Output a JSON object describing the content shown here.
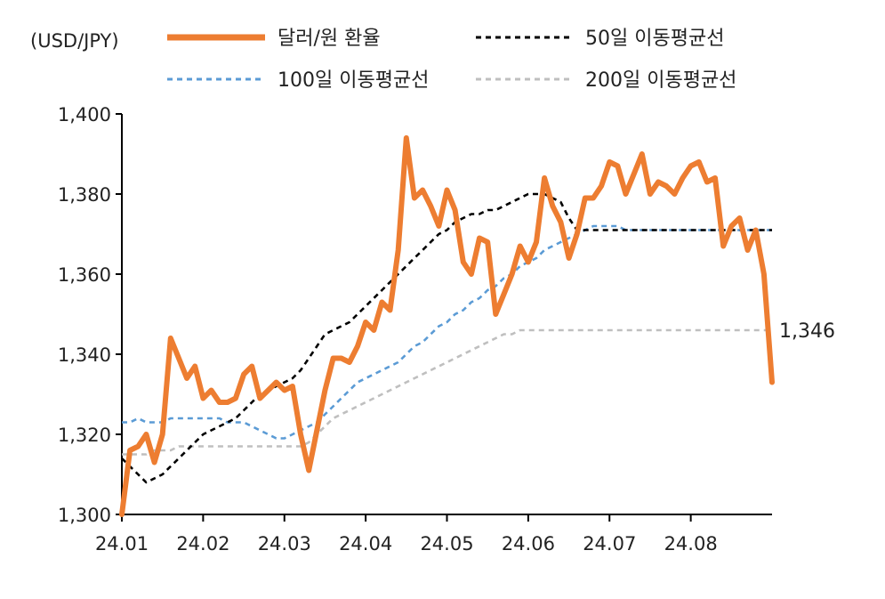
{
  "chart_data": {
    "type": "line",
    "unit_label": "(USD/JPY)",
    "xlabel": "",
    "ylabel": "",
    "ylim": [
      1300,
      1400
    ],
    "y_ticks": [
      1300,
      1320,
      1340,
      1360,
      1380,
      1400
    ],
    "y_tick_labels": [
      "1,300",
      "1,320",
      "1,340",
      "1,360",
      "1,380",
      "1,400"
    ],
    "x_tick_labels": [
      "24.01",
      "24.02",
      "24.03",
      "24.04",
      "24.05",
      "24.06",
      "24.07",
      "24.08"
    ],
    "x_tick_index": [
      0,
      10,
      20,
      30,
      40,
      50,
      60,
      70
    ],
    "x_count": 81,
    "grid": false,
    "legend_position": "top",
    "annotation": {
      "text": "1,346",
      "series": 3
    },
    "series": [
      {
        "name": "달러/원 환율",
        "color": "#ED7D31",
        "style": "solid",
        "values": [
          1300,
          1316,
          1317,
          1320,
          1313,
          1320,
          1344,
          1339,
          1334,
          1337,
          1329,
          1331,
          1328,
          1328,
          1329,
          1335,
          1337,
          1329,
          1331,
          1333,
          1331,
          1332,
          1320,
          1311,
          1321,
          1331,
          1339,
          1339,
          1338,
          1342,
          1348,
          1346,
          1353,
          1351,
          1366,
          1394,
          1379,
          1381,
          1377,
          1372,
          1381,
          1376,
          1363,
          1360,
          1369,
          1368,
          1350,
          1355,
          1360,
          1367,
          1363,
          1368,
          1384,
          1377,
          1373,
          1364,
          1370,
          1379,
          1379,
          1382,
          1388,
          1387,
          1380,
          1385,
          1390,
          1380,
          1383,
          1382,
          1380,
          1384,
          1387,
          1388,
          1383,
          1384,
          1367,
          1372,
          1374,
          1366,
          1371,
          1360,
          1333
        ]
      },
      {
        "name": "50일 이동평균선",
        "color": "#000000",
        "style": "dashed",
        "values": [
          1314,
          1312,
          1310,
          1308,
          1309,
          1310,
          1312,
          1314,
          1316,
          1318,
          1320,
          1321,
          1322,
          1323,
          1324,
          1326,
          1328,
          1330,
          1331,
          1332,
          1333,
          1334,
          1336,
          1339,
          1342,
          1345,
          1346,
          1347,
          1348,
          1350,
          1352,
          1354,
          1356,
          1358,
          1360,
          1362,
          1364,
          1366,
          1368,
          1370,
          1371,
          1373,
          1374,
          1375,
          1375,
          1376,
          1376,
          1377,
          1378,
          1379,
          1380,
          1380,
          1380,
          1379,
          1378,
          1374,
          1371,
          1371,
          1371,
          1371,
          1371,
          1371,
          1371,
          1371,
          1371,
          1371,
          1371,
          1371,
          1371,
          1371,
          1371,
          1371,
          1371,
          1371,
          1371,
          1371,
          1371,
          1371,
          1371,
          1371,
          1371
        ]
      },
      {
        "name": "100일 이동평균선",
        "color": "#5B9BD5",
        "style": "dashed",
        "values": [
          1323,
          1323,
          1324,
          1323,
          1323,
          1323,
          1324,
          1324,
          1324,
          1324,
          1324,
          1324,
          1324,
          1323,
          1323,
          1323,
          1322,
          1321,
          1320,
          1319,
          1319,
          1320,
          1321,
          1322,
          1323,
          1325,
          1327,
          1329,
          1331,
          1333,
          1334,
          1335,
          1336,
          1337,
          1338,
          1340,
          1342,
          1343,
          1345,
          1347,
          1348,
          1350,
          1351,
          1353,
          1354,
          1356,
          1357,
          1359,
          1360,
          1362,
          1363,
          1364,
          1366,
          1367,
          1368,
          1369,
          1370,
          1371,
          1372,
          1372,
          1372,
          1372,
          1371,
          1371,
          1371,
          1371,
          1371,
          1371,
          1371,
          1371,
          1371,
          1371,
          1371,
          1371,
          1371,
          1371,
          1371,
          1371,
          1371,
          1371,
          1371
        ]
      },
      {
        "name": "200일 이동평균선",
        "color": "#BFBFBF",
        "style": "dashed",
        "values": [
          1315,
          1315,
          1315,
          1315,
          1316,
          1316,
          1316,
          1317,
          1317,
          1317,
          1317,
          1317,
          1317,
          1317,
          1317,
          1317,
          1317,
          1317,
          1317,
          1317,
          1317,
          1317,
          1317,
          1318,
          1320,
          1322,
          1324,
          1325,
          1326,
          1327,
          1328,
          1329,
          1330,
          1331,
          1332,
          1333,
          1334,
          1335,
          1336,
          1337,
          1338,
          1339,
          1340,
          1341,
          1342,
          1343,
          1344,
          1345,
          1345,
          1346,
          1346,
          1346,
          1346,
          1346,
          1346,
          1346,
          1346,
          1346,
          1346,
          1346,
          1346,
          1346,
          1346,
          1346,
          1346,
          1346,
          1346,
          1346,
          1346,
          1346,
          1346,
          1346,
          1346,
          1346,
          1346,
          1346,
          1346,
          1346,
          1346,
          1346,
          1346
        ]
      }
    ]
  }
}
